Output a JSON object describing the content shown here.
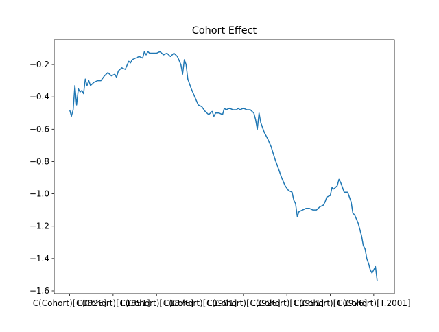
{
  "chart_data": {
    "type": "line",
    "title": "Cohort Effect",
    "x": [
      0,
      1,
      2,
      3,
      4,
      5,
      6,
      7,
      8,
      9,
      10,
      11,
      12,
      14,
      16,
      18,
      20,
      22,
      24,
      26,
      27,
      28,
      30,
      32,
      34,
      35,
      36,
      38,
      40,
      42,
      43,
      44,
      45,
      46,
      48,
      50,
      52,
      54,
      56,
      58,
      60,
      62,
      64,
      65,
      66,
      67,
      68,
      70,
      72,
      74,
      76,
      78,
      80,
      82,
      83,
      84,
      86,
      88,
      89,
      90,
      92,
      94,
      96,
      97,
      98,
      100,
      102,
      104,
      106,
      107,
      108,
      109,
      110,
      112,
      114,
      116,
      118,
      120,
      122,
      124,
      126,
      128,
      129,
      130,
      131,
      132,
      134,
      136,
      138,
      140,
      142,
      144,
      146,
      147,
      148,
      150,
      151,
      152,
      154,
      155,
      156,
      158,
      160,
      162,
      163,
      164,
      166,
      168,
      169,
      170,
      171,
      172,
      173,
      174,
      175,
      176,
      177
    ],
    "series": [
      {
        "color": "#1f77b4",
        "values": [
          -0.48,
          -0.52,
          -0.48,
          -0.33,
          -0.45,
          -0.35,
          -0.37,
          -0.36,
          -0.38,
          -0.29,
          -0.33,
          -0.3,
          -0.33,
          -0.31,
          -0.3,
          -0.3,
          -0.27,
          -0.25,
          -0.27,
          -0.26,
          -0.28,
          -0.24,
          -0.22,
          -0.23,
          -0.18,
          -0.19,
          -0.17,
          -0.16,
          -0.15,
          -0.16,
          -0.12,
          -0.14,
          -0.12,
          -0.13,
          -0.13,
          -0.13,
          -0.12,
          -0.14,
          -0.13,
          -0.15,
          -0.13,
          -0.15,
          -0.2,
          -0.26,
          -0.17,
          -0.2,
          -0.29,
          -0.35,
          -0.4,
          -0.45,
          -0.46,
          -0.49,
          -0.51,
          -0.49,
          -0.52,
          -0.5,
          -0.5,
          -0.51,
          -0.47,
          -0.48,
          -0.47,
          -0.48,
          -0.48,
          -0.47,
          -0.48,
          -0.47,
          -0.48,
          -0.48,
          -0.5,
          -0.54,
          -0.6,
          -0.5,
          -0.56,
          -0.62,
          -0.66,
          -0.71,
          -0.78,
          -0.84,
          -0.9,
          -0.95,
          -0.98,
          -0.99,
          -1.04,
          -1.06,
          -1.14,
          -1.11,
          -1.1,
          -1.09,
          -1.09,
          -1.1,
          -1.1,
          -1.08,
          -1.07,
          -1.05,
          -1.02,
          -1.01,
          -0.96,
          -0.97,
          -0.95,
          -0.91,
          -0.93,
          -0.99,
          -0.99,
          -1.05,
          -1.12,
          -1.13,
          -1.18,
          -1.26,
          -1.32,
          -1.34,
          -1.4,
          -1.43,
          -1.47,
          -1.49,
          -1.47,
          -1.45,
          -1.54
        ]
      }
    ],
    "xlim": [
      -8.9,
      186.9
    ],
    "xticks": [
      {
        "value": 0,
        "label": "C(Cohort)[T.1826]"
      },
      {
        "value": 25,
        "label": "C(Cohort)[T.1851]"
      },
      {
        "value": 50,
        "label": "C(Cohort)[T.1876]"
      },
      {
        "value": 75,
        "label": "C(Cohort)[T.1901]"
      },
      {
        "value": 100,
        "label": "C(Cohort)[T.1926]"
      },
      {
        "value": 125,
        "label": "C(Cohort)[T.1951]"
      },
      {
        "value": 150,
        "label": "C(Cohort)[T.1976]"
      },
      {
        "value": 175,
        "label": "C(Cohort)[T.2001]"
      }
    ],
    "ylim": [
      -1.617,
      -0.047
    ],
    "yticks": [
      {
        "value": -1.6,
        "label": "−1.6"
      },
      {
        "value": -1.4,
        "label": "−1.4"
      },
      {
        "value": -1.2,
        "label": "−1.2"
      },
      {
        "value": -1.0,
        "label": "−1.0"
      },
      {
        "value": -0.8,
        "label": "−0.8"
      },
      {
        "value": -0.6,
        "label": "−0.6"
      },
      {
        "value": -0.4,
        "label": "−0.4"
      },
      {
        "value": -0.2,
        "label": "−0.2"
      }
    ]
  }
}
